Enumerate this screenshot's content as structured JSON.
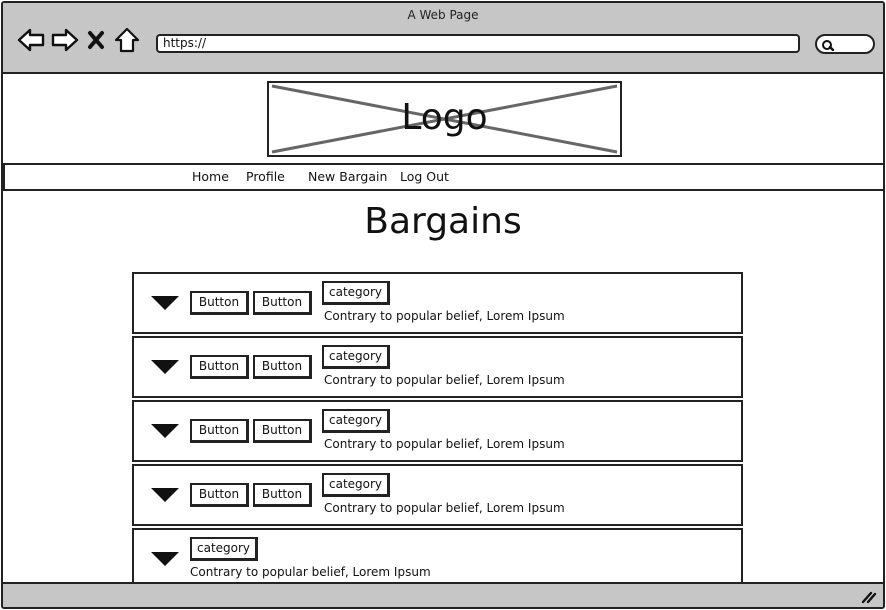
{
  "window": {
    "title": "A Web Page"
  },
  "address_bar": {
    "url": "https://"
  },
  "logo": {
    "text": "Logo"
  },
  "nav": {
    "items": [
      {
        "label": "Home"
      },
      {
        "label": "Profile"
      },
      {
        "label": "New Bargain"
      },
      {
        "label": "Log Out"
      }
    ]
  },
  "page": {
    "title": "Bargains"
  },
  "bargains": [
    {
      "button1": "Button",
      "button2": "Button",
      "category": "category",
      "description": "Contrary to popular belief, Lorem Ipsum"
    },
    {
      "button1": "Button",
      "button2": "Button",
      "category": "category",
      "description": "Contrary to popular belief, Lorem Ipsum"
    },
    {
      "button1": "Button",
      "button2": "Button",
      "category": "category",
      "description": "Contrary to popular belief, Lorem Ipsum"
    },
    {
      "button1": "Button",
      "button2": "Button",
      "category": "category",
      "description": "Contrary to popular belief, Lorem Ipsum"
    },
    {
      "category": "category",
      "description": "Contrary to popular belief, Lorem Ipsum"
    }
  ],
  "icons": {
    "back": "arrow-left-icon",
    "forward": "arrow-right-icon",
    "stop": "close-icon",
    "home": "home-icon",
    "search": "search-icon",
    "expand": "triangle-down-icon",
    "resize": "resize-grip-icon"
  },
  "colors": {
    "chrome": "#c6c6c6",
    "ink": "#222222"
  }
}
